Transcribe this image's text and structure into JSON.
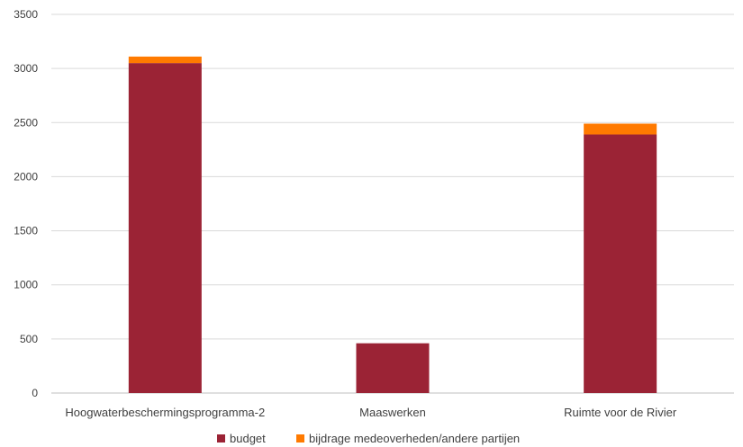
{
  "chart_data": {
    "type": "bar",
    "stacked": true,
    "categories": [
      "Hoogwaterbeschermingsprogramma-2",
      "Maaswerken",
      "Ruimte voor de Rivier"
    ],
    "series": [
      {
        "name": "budget",
        "color": "#9b2335",
        "values": [
          3050,
          460,
          2390
        ]
      },
      {
        "name": "bijdrage medeoverheden/andere partijen",
        "color": "#ff7a00",
        "values": [
          60,
          0,
          100
        ]
      }
    ],
    "yticks": [
      0,
      500,
      1000,
      1500,
      2000,
      2500,
      3000,
      3500
    ],
    "ylim": [
      0,
      3500
    ],
    "grid": true,
    "legend_position": "bottom"
  }
}
